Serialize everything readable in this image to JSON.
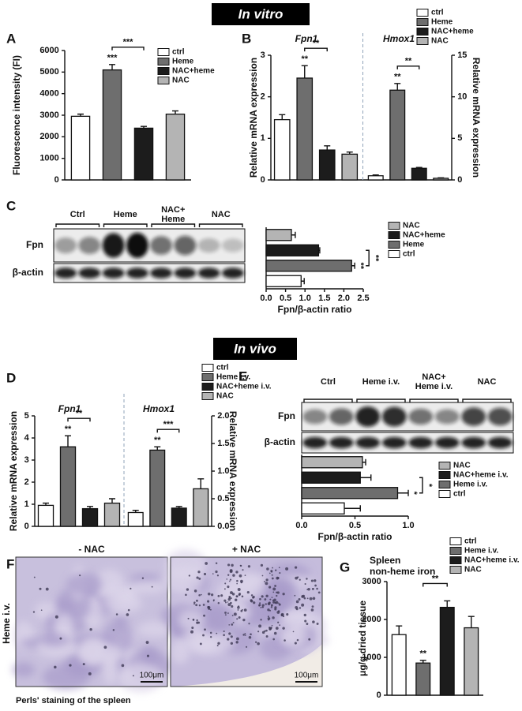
{
  "sections": [
    "In vitro",
    "In vivo"
  ],
  "chart_data": [
    {
      "panel": "A",
      "type": "bar",
      "ylabel": "Fluorescence intensity (FI)",
      "categories": [
        "ctrl",
        "Heme",
        "NAC+heme",
        "NAC"
      ],
      "values": [
        2950,
        5100,
        2400,
        3050
      ],
      "errors": [
        100,
        250,
        80,
        150
      ],
      "colors": [
        "#ffffff",
        "#6e6e6e",
        "#1c1c1c",
        "#b4b4b4"
      ],
      "ylim": [
        0,
        6000
      ],
      "yticks": [
        0,
        1000,
        2000,
        3000,
        4000,
        5000,
        6000
      ],
      "annotations": [
        "***",
        "***"
      ]
    },
    {
      "panel": "B",
      "type": "grouped-bar",
      "ylabel": "Relative mRNA expression",
      "y2label": "Relative mRNA expression",
      "groups": [
        {
          "name": "Fpn1",
          "axis": "y"
        },
        {
          "name": "Hmox1",
          "axis": "y2"
        }
      ],
      "series": [
        {
          "name": "ctrl",
          "color": "#ffffff",
          "values": [
            1.45,
            0.5
          ],
          "errors": [
            0.12,
            0.1
          ]
        },
        {
          "name": "Heme",
          "color": "#6e6e6e",
          "values": [
            2.45,
            10.8
          ],
          "errors": [
            0.3,
            0.8
          ]
        },
        {
          "name": "NAC+heme",
          "color": "#1c1c1c",
          "values": [
            0.72,
            1.4
          ],
          "errors": [
            0.1,
            0.1
          ]
        },
        {
          "name": "NAC",
          "color": "#b4b4b4",
          "values": [
            0.62,
            0.2
          ],
          "errors": [
            0.05,
            0.05
          ]
        }
      ],
      "ylim": [
        0,
        3
      ],
      "yticks": [
        0,
        1,
        2,
        3
      ],
      "y2lim": [
        0,
        15
      ],
      "y2ticks": [
        0,
        5,
        10,
        15
      ],
      "annotations": [
        "**",
        "**",
        "**",
        "**"
      ]
    },
    {
      "panel": "C",
      "type": "hbar",
      "xlabel": "Fpn/β-actin ratio",
      "categories": [
        "NAC",
        "NAC+heme",
        "Heme",
        "ctrl"
      ],
      "values": [
        0.65,
        1.35,
        2.2,
        0.9
      ],
      "errors": [
        0.1,
        0.03,
        0.08,
        0.08
      ],
      "colors": [
        "#b4b4b4",
        "#1c1c1c",
        "#6e6e6e",
        "#ffffff"
      ],
      "xlim": [
        0,
        2.5
      ],
      "xticks": [
        {
          "value": 0,
          "label": "0.0"
        },
        0.5,
        {
          "value": 1,
          "label": "1.0"
        },
        1.5,
        {
          "value": 2,
          "label": "2.0"
        },
        2.5
      ],
      "annotations": [
        "**",
        "**"
      ],
      "blot": {
        "lanes": [
          [
            "Ctrl"
          ],
          [
            "Heme"
          ],
          [
            "NAC+",
            "Heme"
          ],
          [
            "NAC"
          ]
        ],
        "rows": [
          "Fpn",
          "β-actin"
        ]
      }
    },
    {
      "panel": "D",
      "type": "grouped-bar",
      "ylabel": "Relative mRNA expression",
      "y2label": "Relative mRNA expression",
      "groups": [
        {
          "name": "Fpn1",
          "axis": "y"
        },
        {
          "name": "Hmox1",
          "axis": "y2"
        }
      ],
      "series": [
        {
          "name": "ctrl",
          "color": "#ffffff",
          "values": [
            0.95,
            0.25
          ],
          "errors": [
            0.1,
            0.04
          ]
        },
        {
          "name": "Heme i.v.",
          "color": "#6e6e6e",
          "values": [
            3.6,
            1.38
          ],
          "errors": [
            0.5,
            0.06
          ]
        },
        {
          "name": "NAC+heme i.v.",
          "color": "#1c1c1c",
          "values": [
            0.8,
            0.33
          ],
          "errors": [
            0.1,
            0.03
          ]
        },
        {
          "name": "NAC",
          "color": "#b4b4b4",
          "values": [
            1.05,
            0.68
          ],
          "errors": [
            0.2,
            0.18
          ]
        }
      ],
      "ylim": [
        0,
        5
      ],
      "yticks": [
        0,
        1,
        2,
        3,
        4,
        5
      ],
      "y2lim": [
        0,
        2
      ],
      "y2ticks": [
        {
          "value": 0,
          "label": "0.0"
        },
        0.5,
        {
          "value": 1,
          "label": "1.0"
        },
        1.5,
        {
          "value": 2,
          "label": "2.0"
        }
      ],
      "annotations": [
        "**",
        "**",
        "**",
        "***"
      ]
    },
    {
      "panel": "E",
      "type": "hbar",
      "xlabel": "Fpn/β-actin ratio",
      "categories": [
        "NAC",
        "NAC+heme i.v.",
        "Heme i.v.",
        "ctrl"
      ],
      "values": [
        0.57,
        0.55,
        0.9,
        0.4
      ],
      "errors": [
        0.03,
        0.1,
        0.1,
        0.15
      ],
      "colors": [
        "#b4b4b4",
        "#1c1c1c",
        "#6e6e6e",
        "#ffffff"
      ],
      "xlim": [
        0,
        1
      ],
      "xticks": [
        {
          "value": 0,
          "label": "0.0"
        },
        0.5,
        {
          "value": 1,
          "label": "1.0"
        }
      ],
      "annotations": [
        "*",
        "*"
      ],
      "blot": {
        "lanes": [
          [
            "Ctrl"
          ],
          [
            "Heme i.v."
          ],
          [
            "NAC+",
            "Heme i.v."
          ],
          [
            "NAC"
          ]
        ],
        "rows": [
          "Fpn",
          "β-actin"
        ]
      }
    },
    {
      "panel": "G",
      "type": "bar",
      "title": [
        "Spleen",
        "non-heme iron"
      ],
      "ylabel": "μg/g dried tissue",
      "categories": [
        "ctrl",
        "Heme i.v.",
        "NAC+heme i.v.",
        "NAC"
      ],
      "values": [
        1600,
        850,
        2320,
        1780
      ],
      "errors": [
        230,
        70,
        170,
        300
      ],
      "colors": [
        "#ffffff",
        "#6e6e6e",
        "#1c1c1c",
        "#b4b4b4"
      ],
      "ylim": [
        0,
        3000
      ],
      "yticks": [
        0,
        1000,
        2000,
        3000
      ],
      "annotations": [
        "**",
        "**"
      ]
    }
  ],
  "histology": {
    "panel": "F",
    "columns": [
      "- NAC",
      "+ NAC"
    ],
    "row_label": "Heme i.v.",
    "scale_bars": [
      "100μm",
      "100μm"
    ],
    "caption": "Perls' staining of the spleen"
  }
}
